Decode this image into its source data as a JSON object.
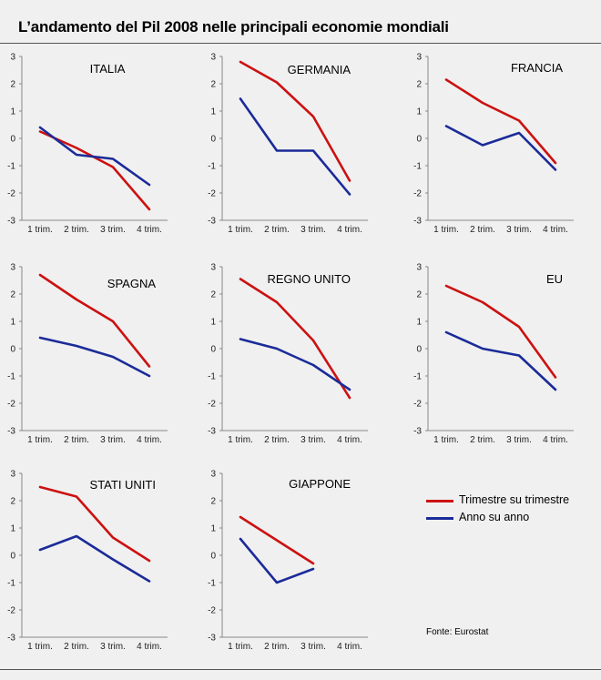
{
  "title": "L’andamento del Pil 2008 nelle principali economie mondiali",
  "source": "Fonte: Eurostat",
  "colors": {
    "qoq": "#cc1111",
    "yoy": "#1b2b99"
  },
  "legend": [
    {
      "key": "qoq",
      "label": "Trimestre su trimestre"
    },
    {
      "key": "yoy",
      "label": "Anno su anno"
    }
  ],
  "chart_data": [
    {
      "type": "line",
      "title": "ITALIA",
      "categories": [
        "1 trim.",
        "2 trim.",
        "3 trim.",
        "4 trim."
      ],
      "ylim": [
        -3,
        3
      ],
      "yticks": [
        3,
        2,
        1,
        0,
        -1,
        -2,
        -3
      ],
      "series": [
        {
          "key": "qoq",
          "name": "Trimestre su trimestre",
          "values": [
            0.25,
            -0.35,
            -1.05,
            -2.6
          ]
        },
        {
          "key": "yoy",
          "name": "Anno su anno",
          "values": [
            0.4,
            -0.6,
            -0.75,
            -1.7
          ]
        }
      ]
    },
    {
      "type": "line",
      "title": "GERMANIA",
      "categories": [
        "1 trim.",
        "2 trim.",
        "3 trim.",
        "4 trim."
      ],
      "ylim": [
        -3,
        3
      ],
      "yticks": [
        3,
        2,
        1,
        0,
        -1,
        -2,
        -3
      ],
      "series": [
        {
          "key": "qoq",
          "name": "Trimestre su trimestre",
          "values": [
            2.8,
            2.05,
            0.8,
            -1.55
          ]
        },
        {
          "key": "yoy",
          "name": "Anno su anno",
          "values": [
            1.45,
            -0.45,
            -0.45,
            -2.05
          ]
        }
      ]
    },
    {
      "type": "line",
      "title": "FRANCIA",
      "categories": [
        "1 trim.",
        "2 trim.",
        "3 trim.",
        "4 trim."
      ],
      "ylim": [
        -3,
        3
      ],
      "yticks": [
        3,
        2,
        1,
        0,
        -1,
        -2,
        -3
      ],
      "series": [
        {
          "key": "qoq",
          "name": "Trimestre su trimestre",
          "values": [
            2.15,
            1.3,
            0.65,
            -0.9
          ]
        },
        {
          "key": "yoy",
          "name": "Anno su anno",
          "values": [
            0.45,
            -0.25,
            0.2,
            -1.15
          ]
        }
      ]
    },
    {
      "type": "line",
      "title": "SPAGNA",
      "categories": [
        "1 trim.",
        "2 trim.",
        "3 trim.",
        "4 trim."
      ],
      "ylim": [
        -3,
        3
      ],
      "yticks": [
        3,
        2,
        1,
        0,
        -1,
        -2,
        -3
      ],
      "series": [
        {
          "key": "qoq",
          "name": "Trimestre su trimestre",
          "values": [
            2.7,
            1.8,
            1.0,
            -0.65
          ]
        },
        {
          "key": "yoy",
          "name": "Anno su anno",
          "values": [
            0.4,
            0.1,
            -0.3,
            -1.0
          ]
        }
      ]
    },
    {
      "type": "line",
      "title": "REGNO UNITO",
      "categories": [
        "1 trim.",
        "2 trim.",
        "3 trim.",
        "4 trim."
      ],
      "ylim": [
        -3,
        3
      ],
      "yticks": [
        3,
        2,
        1,
        0,
        -1,
        -2,
        -3
      ],
      "series": [
        {
          "key": "qoq",
          "name": "Trimestre su trimestre",
          "values": [
            2.55,
            1.7,
            0.3,
            -1.8
          ]
        },
        {
          "key": "yoy",
          "name": "Anno su anno",
          "values": [
            0.35,
            0.0,
            -0.6,
            -1.5
          ]
        }
      ]
    },
    {
      "type": "line",
      "title": "EU",
      "categories": [
        "1 trim.",
        "2 trim.",
        "3 trim.",
        "4 trim."
      ],
      "ylim": [
        -3,
        3
      ],
      "yticks": [
        3,
        2,
        1,
        0,
        -1,
        -2,
        -3
      ],
      "series": [
        {
          "key": "qoq",
          "name": "Trimestre su trimestre",
          "values": [
            2.3,
            1.7,
            0.8,
            -1.05
          ]
        },
        {
          "key": "yoy",
          "name": "Anno su anno",
          "values": [
            0.6,
            0.0,
            -0.25,
            -1.5
          ]
        }
      ]
    },
    {
      "type": "line",
      "title": "STATI UNITI",
      "categories": [
        "1 trim.",
        "2 trim.",
        "3 trim.",
        "4 trim."
      ],
      "ylim": [
        -3,
        3
      ],
      "yticks": [
        3,
        2,
        1,
        0,
        -1,
        -2,
        -3
      ],
      "series": [
        {
          "key": "qoq",
          "name": "Trimestre su trimestre",
          "values": [
            2.5,
            2.15,
            0.65,
            -0.2
          ]
        },
        {
          "key": "yoy",
          "name": "Anno su anno",
          "values": [
            0.2,
            0.7,
            -0.15,
            -0.95
          ]
        }
      ]
    },
    {
      "type": "line",
      "title": "GIAPPONE",
      "categories": [
        "1 trim.",
        "2 trim.",
        "3 trim.",
        "4 trim."
      ],
      "ylim": [
        -3,
        3
      ],
      "yticks": [
        3,
        2,
        1,
        0,
        -1,
        -2,
        -3
      ],
      "series": [
        {
          "key": "qoq",
          "name": "Trimestre su trimestre",
          "values": [
            1.4,
            null,
            -0.3,
            null
          ]
        },
        {
          "key": "yoy",
          "name": "Anno su anno",
          "values": [
            0.6,
            -1.0,
            -0.5,
            null
          ]
        }
      ]
    }
  ]
}
